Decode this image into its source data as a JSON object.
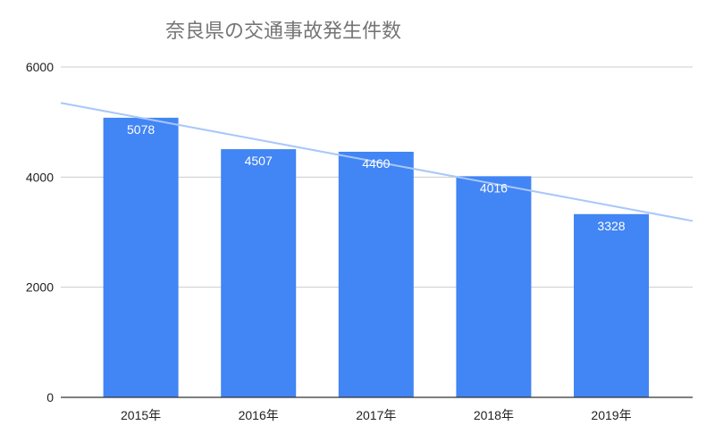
{
  "chart_data": {
    "type": "bar",
    "title": "奈良県の交通事故発生件数",
    "categories": [
      "2015年",
      "2016年",
      "2017年",
      "2018年",
      "2019年"
    ],
    "values": [
      5078,
      4507,
      4460,
      4016,
      3328
    ],
    "data_labels": [
      "5078",
      "4507",
      "4460",
      "4016",
      "3328"
    ],
    "ylim": [
      0,
      6000
    ],
    "yticks": [
      0,
      2000,
      4000,
      6000
    ],
    "ytick_labels": [
      "0",
      "2000",
      "4000",
      "6000"
    ],
    "grid": true,
    "trendline": {
      "type": "linear"
    },
    "colors": {
      "bar": "#4285f4",
      "trendline": "#a8c7fa",
      "grid": "#cccccc",
      "axis": "#333333"
    }
  }
}
